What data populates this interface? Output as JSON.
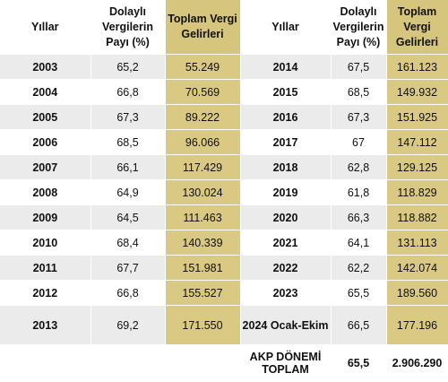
{
  "headers": {
    "years": "Yıllar",
    "indirect_share": "Dolaylı Vergilerin Payı (%)",
    "total_revenue": "Toplam Vergi Gelirleri"
  },
  "rows": [
    {
      "y1": "2003",
      "p1": "65,2",
      "t1": "55.249",
      "y2": "2014",
      "p2": "67,5",
      "t2": "161.123"
    },
    {
      "y1": "2004",
      "p1": "66,8",
      "t1": "70.569",
      "y2": "2015",
      "p2": "68,5",
      "t2": "149.932"
    },
    {
      "y1": "2005",
      "p1": "67,3",
      "t1": "89.222",
      "y2": "2016",
      "p2": "67,3",
      "t2": "151.925"
    },
    {
      "y1": "2006",
      "p1": "68,5",
      "t1": "96.066",
      "y2": "2017",
      "p2": "67",
      "t2": "147.112"
    },
    {
      "y1": "2007",
      "p1": "66,1",
      "t1": "117.429",
      "y2": "2018",
      "p2": "62,8",
      "t2": "129.125"
    },
    {
      "y1": "2008",
      "p1": "64,9",
      "t1": "130.024",
      "y2": "2019",
      "p2": "61,8",
      "t2": "118.829"
    },
    {
      "y1": "2009",
      "p1": "64,5",
      "t1": "111.463",
      "y2": "2020",
      "p2": "66,3",
      "t2": "118.882"
    },
    {
      "y1": "2010",
      "p1": "68,4",
      "t1": "140.339",
      "y2": "2021",
      "p2": "64,1",
      "t2": "131.113"
    },
    {
      "y1": "2011",
      "p1": "67,7",
      "t1": "151.981",
      "y2": "2022",
      "p2": "62,2",
      "t2": "142.074"
    },
    {
      "y1": "2012",
      "p1": "66,8",
      "t1": "155.527",
      "y2": "2023",
      "p2": "65,5",
      "t2": "189.560"
    },
    {
      "y1": "2013",
      "p1": "69,2",
      "t1": "171.550",
      "y2": "2024 Ocak-Ekim",
      "p2": "66,5",
      "t2": "177.196"
    }
  ],
  "total": {
    "label": "AKP DÖNEMİ TOPLAM",
    "share": "65,5",
    "revenue": "2.906.290"
  }
}
